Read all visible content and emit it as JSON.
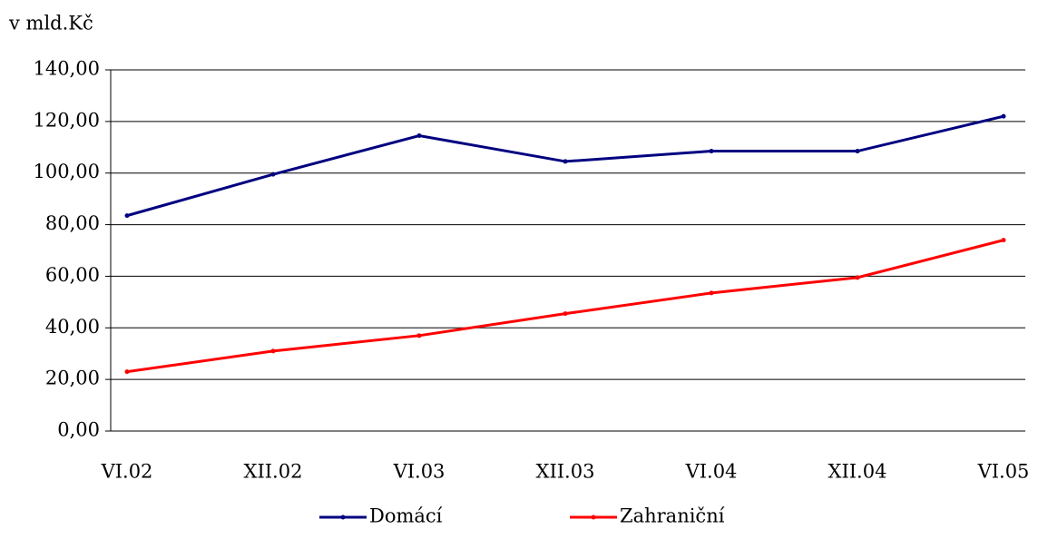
{
  "chart_data": {
    "type": "line",
    "y_label": "v mld.Kč",
    "categories": [
      "VI.02",
      "XII.02",
      "VI.03",
      "XII.03",
      "VI.04",
      "XII.04",
      "VI.05"
    ],
    "series": [
      {
        "name": "Domácí",
        "color": "#000080",
        "values": [
          83.5,
          99.5,
          114.5,
          104.5,
          108.5,
          108.5,
          122
        ]
      },
      {
        "name": "Zahraniční",
        "color": "#ff0000",
        "values": [
          23,
          31,
          37,
          45.5,
          53.5,
          59.5,
          74
        ]
      }
    ],
    "ylim": [
      0,
      140
    ],
    "yticks": [
      {
        "value": 0,
        "label": "0,00"
      },
      {
        "value": 20,
        "label": "20,00"
      },
      {
        "value": 40,
        "label": "40,00"
      },
      {
        "value": 60,
        "label": "60,00"
      },
      {
        "value": 80,
        "label": "80,00"
      },
      {
        "value": 100,
        "label": "100,00"
      },
      {
        "value": 120,
        "label": "120,00"
      },
      {
        "value": 140,
        "label": "140,00"
      }
    ],
    "grid": true,
    "legend": "bottom"
  }
}
